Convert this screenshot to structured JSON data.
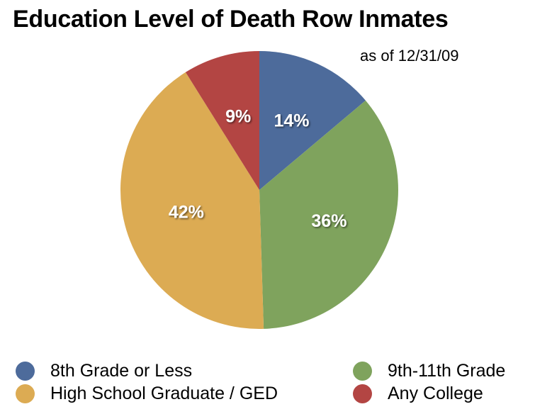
{
  "chart_data": {
    "type": "pie",
    "title": "Education Level of Death Row Inmates",
    "subtitle": "as of 12/31/09",
    "unit": "%",
    "start_angle_deg": 0,
    "direction": "clockwise",
    "slices": [
      {
        "label": "8th Grade or Less",
        "value": 14,
        "color": "#4d6b9b"
      },
      {
        "label": "9th-11th Grade",
        "value": 36,
        "color": "#7fa35d"
      },
      {
        "label": "High School Graduate / GED",
        "value": 42,
        "color": "#dcab53"
      },
      {
        "label": "Any College",
        "value": 9,
        "color": "#b34543"
      }
    ],
    "legend_placement": "bottom",
    "legend_order": [
      0,
      1,
      2,
      3
    ]
  }
}
